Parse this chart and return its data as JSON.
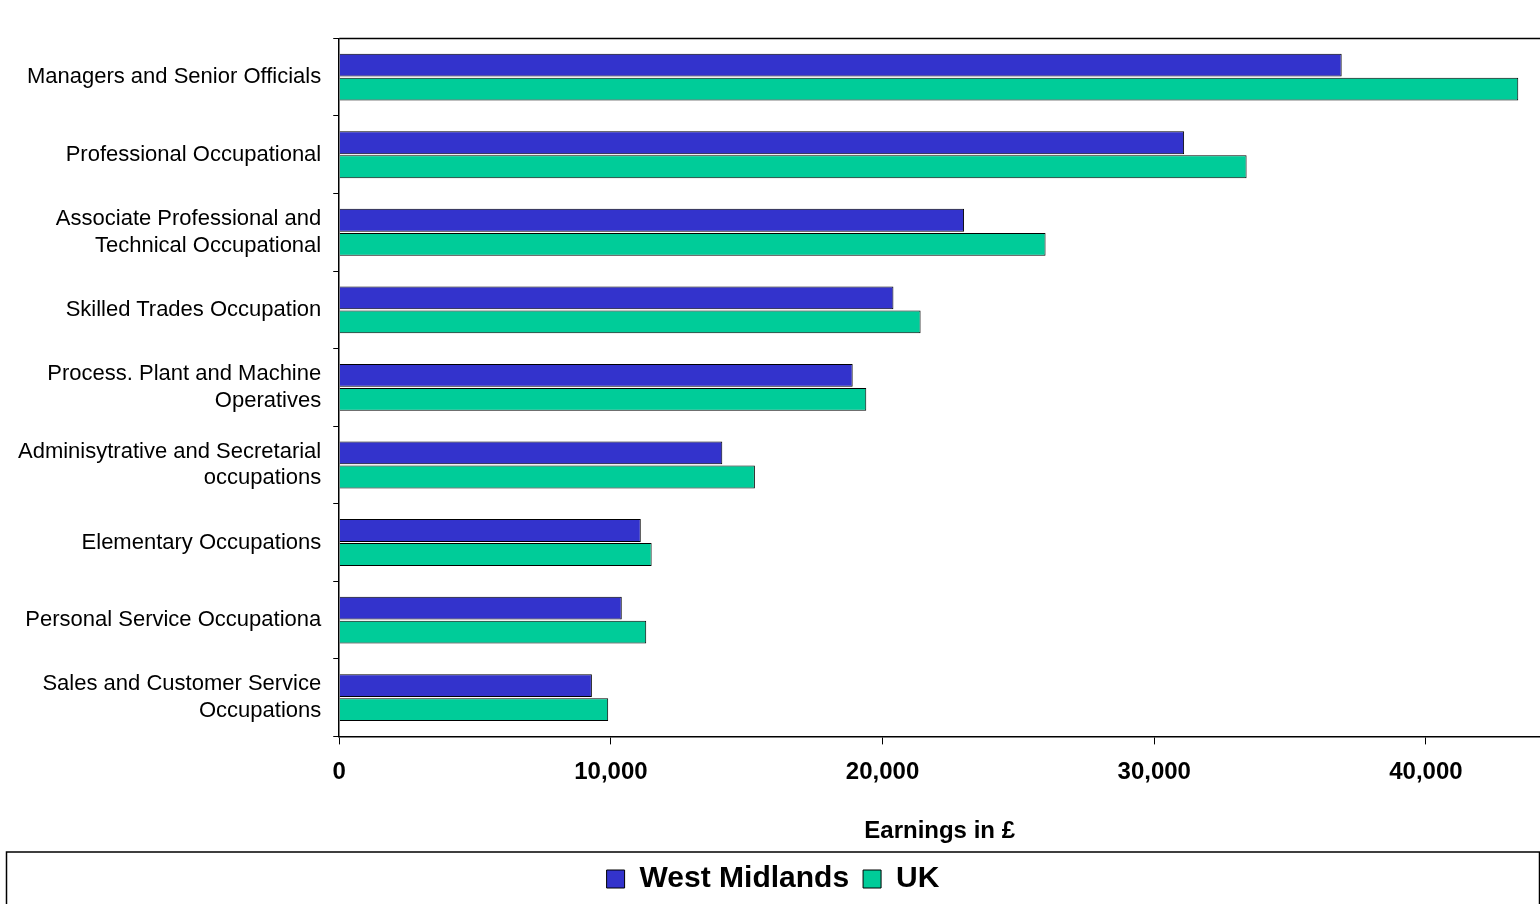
{
  "chart_data": {
    "type": "bar",
    "orientation": "horizontal",
    "xlabel": "Earnings in £",
    "categories": [
      "Managers and Senior Officials",
      "Professional Occupational",
      "Associate Professional and Technical Occupational",
      "Skilled Trades Occupation",
      "Process. Plant and Machine Operatives",
      "Adminisytrative and Secretarial occupations",
      "Elementary Occupations",
      "Personal Service Occupationa",
      "Sales and Customer Service Occupations"
    ],
    "series": [
      {
        "name": "West Midlands",
        "color": "#3333cc",
        "values": [
          36900,
          31100,
          23000,
          20400,
          18900,
          14100,
          11100,
          10400,
          9300
        ]
      },
      {
        "name": "UK",
        "color": "#00cc99",
        "values": [
          43400,
          33400,
          26000,
          21400,
          19400,
          15300,
          11500,
          11300,
          9900
        ]
      }
    ],
    "xlim": [
      0,
      44200
    ],
    "xticks": [
      0,
      {
        "value": 10000,
        "label": "10,000"
      },
      {
        "value": 20000,
        "label": "20,000"
      },
      {
        "value": 30000,
        "label": "30,000"
      },
      {
        "value": 40000,
        "label": "40,000"
      }
    ],
    "grid": false,
    "legend": "bottom"
  }
}
